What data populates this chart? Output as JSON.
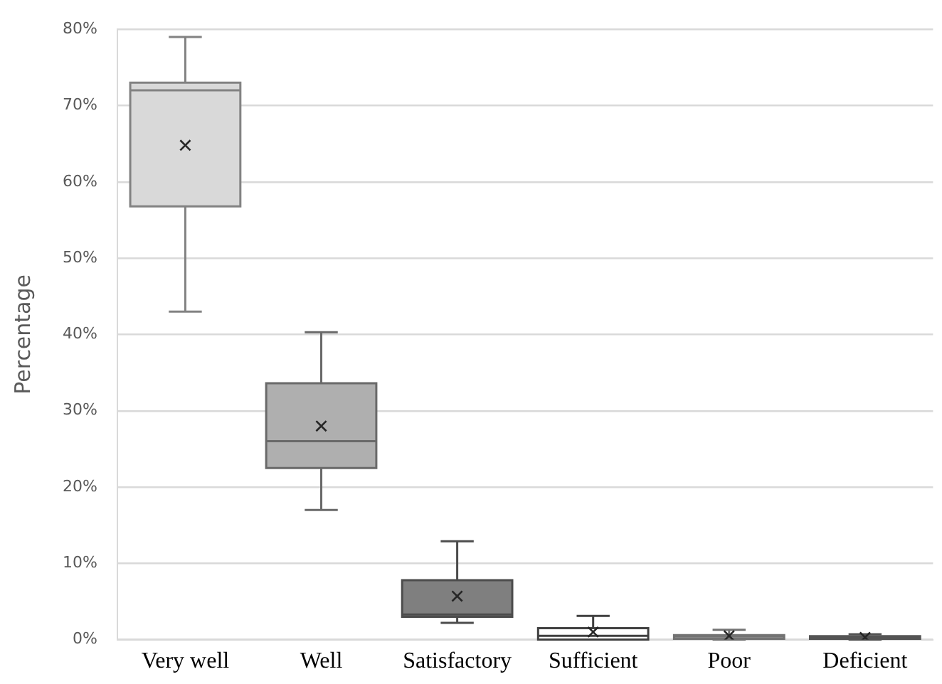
{
  "chart_data": {
    "type": "box",
    "ylabel": "Percentage",
    "categories": [
      "Very well",
      "Well",
      "Satisfactory",
      "Sufficient",
      "Poor",
      "Deficient"
    ],
    "boxes": [
      {
        "low": 43,
        "q1": 56.8,
        "median": 72,
        "q3": 73,
        "high": 79,
        "mean": 64.8
      },
      {
        "low": 17,
        "q1": 22.5,
        "median": 26,
        "q3": 33.6,
        "high": 40.3,
        "mean": 28
      },
      {
        "low": 2.2,
        "q1": 3,
        "median": 3.3,
        "q3": 7.8,
        "high": 12.9,
        "mean": 5.7
      },
      {
        "low": 0,
        "q1": 0,
        "median": 0.5,
        "q3": 1.5,
        "high": 3.1,
        "mean": 1.0
      },
      {
        "low": 0,
        "q1": 0.1,
        "median": 0.4,
        "q3": 0.6,
        "high": 1.3,
        "mean": 0.5
      },
      {
        "low": 0,
        "q1": 0.1,
        "median": 0.3,
        "q3": 0.45,
        "high": 0.7,
        "mean": 0.3
      }
    ],
    "colors": [
      "#d9d9d9",
      "#afafaf",
      "#7f7f7f",
      "#ffffff",
      "#bfbfbf",
      "#8c8c8c"
    ],
    "ylim": [
      0,
      80
    ],
    "yticks": [
      {
        "value": 0,
        "label": "0%"
      },
      {
        "value": 10,
        "label": "10%"
      },
      {
        "value": 20,
        "label": "20%"
      },
      {
        "value": 30,
        "label": "30%"
      },
      {
        "value": 40,
        "label": "40%"
      },
      {
        "value": 50,
        "label": "50%"
      },
      {
        "value": 60,
        "label": "60%"
      },
      {
        "value": 70,
        "label": "70%"
      },
      {
        "value": 80,
        "label": "80%"
      }
    ],
    "grid": "y",
    "legend": false,
    "marker": "cross"
  }
}
